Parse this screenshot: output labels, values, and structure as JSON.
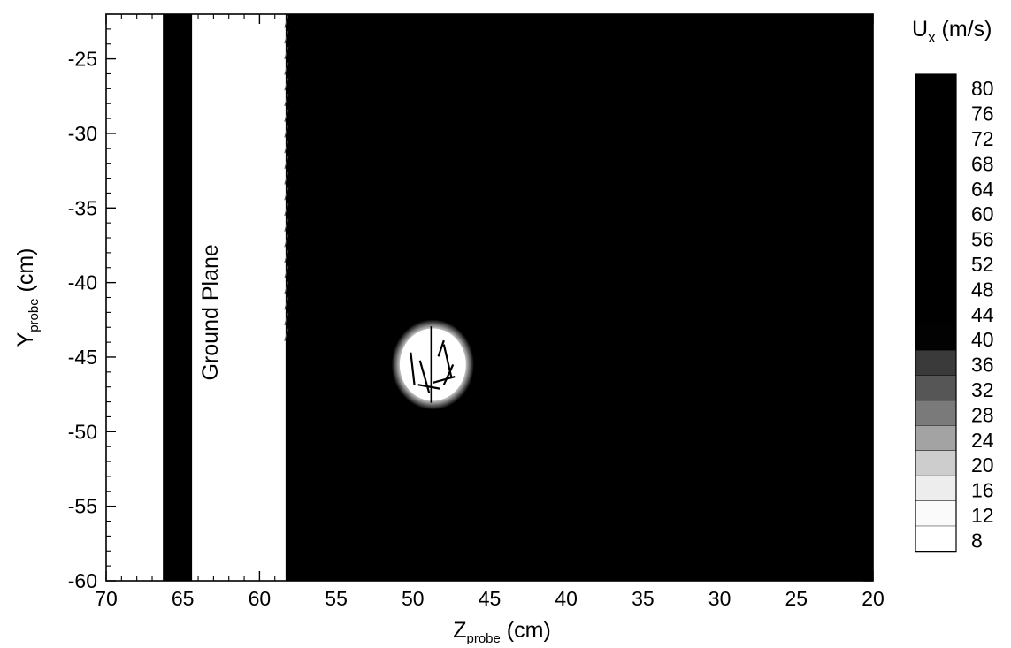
{
  "chart_data": {
    "type": "heatmap",
    "title": "",
    "xlabel": {
      "main": "Z",
      "sub": "probe",
      "unit": "(cm)"
    },
    "ylabel": {
      "main": "Y",
      "sub": "probe",
      "unit": "(cm)"
    },
    "xlim": [
      70,
      20
    ],
    "ylim": [
      -60,
      -22
    ],
    "x_reversed": true,
    "x_ticks": [
      70,
      65,
      60,
      55,
      50,
      45,
      40,
      35,
      30,
      25,
      20
    ],
    "y_ticks": [
      -25,
      -30,
      -35,
      -40,
      -45,
      -50,
      -55,
      -60
    ],
    "grid": false,
    "annotations": [
      {
        "text": "Ground Plane",
        "x": 63.2,
        "y": -42,
        "rotation": -90
      }
    ],
    "ground_plane": {
      "white_bands": [
        [
          70,
          66.3
        ],
        [
          64.4,
          58.3
        ]
      ],
      "dark_band": [
        66.3,
        64.4
      ]
    },
    "freestream_region": {
      "x_range": [
        58.3,
        20
      ],
      "value": 80
    },
    "vortex_core": {
      "center_z": 48.7,
      "center_y": -45.5,
      "radius_z": 2.4,
      "radius_y": 2.7,
      "min_value": 8
    },
    "colorbar": {
      "title_main": "U",
      "title_sub": "x",
      "title_unit": "(m/s)",
      "levels": [
        80,
        76,
        72,
        68,
        64,
        60,
        56,
        52,
        48,
        44,
        40,
        36,
        32,
        28,
        24,
        20,
        16,
        12,
        8
      ],
      "colors": [
        "#000000",
        "#000000",
        "#000000",
        "#000000",
        "#000000",
        "#000000",
        "#000000",
        "#000000",
        "#000000",
        "#000000",
        "#020202",
        "#3a3a3a",
        "#565656",
        "#7a7a7a",
        "#a3a3a3",
        "#cdcdcd",
        "#ededed",
        "#fafafa",
        "#ffffff"
      ]
    }
  }
}
